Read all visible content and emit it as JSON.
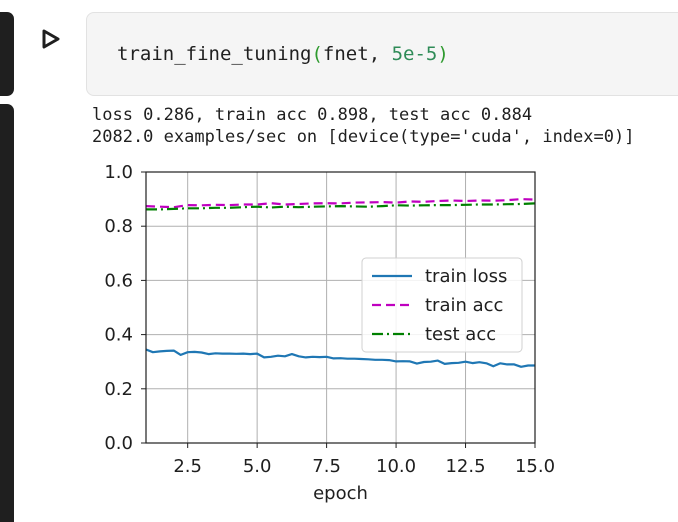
{
  "cell": {
    "function_name": "train_fine_tuning",
    "open_paren": "(",
    "arg_net": "fnet",
    "separator": ", ",
    "arg_lr": "5e-5",
    "close_paren": ")",
    "run_icon": "play-triangle-icon"
  },
  "output": {
    "line1": "loss 0.286, train acc 0.898, test acc 0.884",
    "line2": "2082.0 examples/sec on [device(type='cuda', index=0)]"
  },
  "chart_data": {
    "type": "line",
    "xlabel": "epoch",
    "ylabel": "",
    "xlim": [
      1,
      15
    ],
    "ylim": [
      0,
      1.0
    ],
    "xticks": [
      "2.5",
      "5.0",
      "7.5",
      "10.0",
      "12.5",
      "15.0"
    ],
    "yticks": [
      "0.0",
      "0.2",
      "0.4",
      "0.6",
      "0.8",
      "1.0"
    ],
    "grid": true,
    "legend_position": "center-right",
    "series": [
      {
        "name": "train loss",
        "color": "#1f77b4",
        "style": "solid",
        "x": [
          1.0,
          1.25,
          1.5,
          1.75,
          2.0,
          2.25,
          2.5,
          2.75,
          3.0,
          3.25,
          3.5,
          3.75,
          4.0,
          4.25,
          4.5,
          4.75,
          5.0,
          5.25,
          5.5,
          5.75,
          6.0,
          6.25,
          6.5,
          6.75,
          7.0,
          7.25,
          7.5,
          7.75,
          8.0,
          8.25,
          8.5,
          8.75,
          9.0,
          9.25,
          9.5,
          9.75,
          10.0,
          10.25,
          10.5,
          10.75,
          11.0,
          11.25,
          11.5,
          11.75,
          12.0,
          12.25,
          12.5,
          12.75,
          13.0,
          13.25,
          13.5,
          13.75,
          14.0,
          14.25,
          14.5,
          14.75,
          15.0
        ],
        "y": [
          0.345,
          0.335,
          0.338,
          0.34,
          0.341,
          0.325,
          0.335,
          0.336,
          0.334,
          0.328,
          0.331,
          0.33,
          0.33,
          0.329,
          0.33,
          0.328,
          0.33,
          0.316,
          0.318,
          0.322,
          0.32,
          0.328,
          0.32,
          0.316,
          0.318,
          0.317,
          0.318,
          0.312,
          0.313,
          0.311,
          0.311,
          0.31,
          0.309,
          0.307,
          0.307,
          0.306,
          0.301,
          0.302,
          0.301,
          0.293,
          0.299,
          0.3,
          0.304,
          0.292,
          0.295,
          0.296,
          0.3,
          0.295,
          0.298,
          0.294,
          0.283,
          0.294,
          0.29,
          0.29,
          0.281,
          0.286,
          0.286
        ]
      },
      {
        "name": "train acc",
        "color": "#bf00bf",
        "style": "dashed",
        "x": [
          1.0,
          1.5,
          2.0,
          2.5,
          3.0,
          3.5,
          4.0,
          4.5,
          5.0,
          5.5,
          6.0,
          6.5,
          7.0,
          7.5,
          8.0,
          8.5,
          9.0,
          9.5,
          10.0,
          10.5,
          11.0,
          11.5,
          12.0,
          12.5,
          13.0,
          13.5,
          14.0,
          14.5,
          15.0
        ],
        "y": [
          0.874,
          0.872,
          0.87,
          0.878,
          0.877,
          0.879,
          0.878,
          0.88,
          0.88,
          0.885,
          0.88,
          0.882,
          0.884,
          0.885,
          0.884,
          0.887,
          0.888,
          0.889,
          0.887,
          0.891,
          0.89,
          0.893,
          0.895,
          0.893,
          0.895,
          0.894,
          0.896,
          0.9,
          0.898
        ]
      },
      {
        "name": "test acc",
        "color": "#008000",
        "style": "dashdot",
        "x": [
          1.0,
          1.5,
          2.0,
          2.5,
          3.0,
          3.5,
          4.0,
          4.5,
          5.0,
          5.5,
          6.0,
          6.5,
          7.0,
          7.5,
          8.0,
          8.5,
          9.0,
          9.5,
          10.0,
          10.5,
          11.0,
          11.5,
          12.0,
          12.5,
          13.0,
          13.5,
          14.0,
          14.5,
          15.0
        ],
        "y": [
          0.862,
          0.862,
          0.864,
          0.866,
          0.866,
          0.868,
          0.868,
          0.87,
          0.872,
          0.869,
          0.872,
          0.87,
          0.872,
          0.873,
          0.874,
          0.873,
          0.872,
          0.874,
          0.877,
          0.876,
          0.877,
          0.878,
          0.878,
          0.879,
          0.88,
          0.88,
          0.881,
          0.882,
          0.884
        ]
      }
    ]
  }
}
